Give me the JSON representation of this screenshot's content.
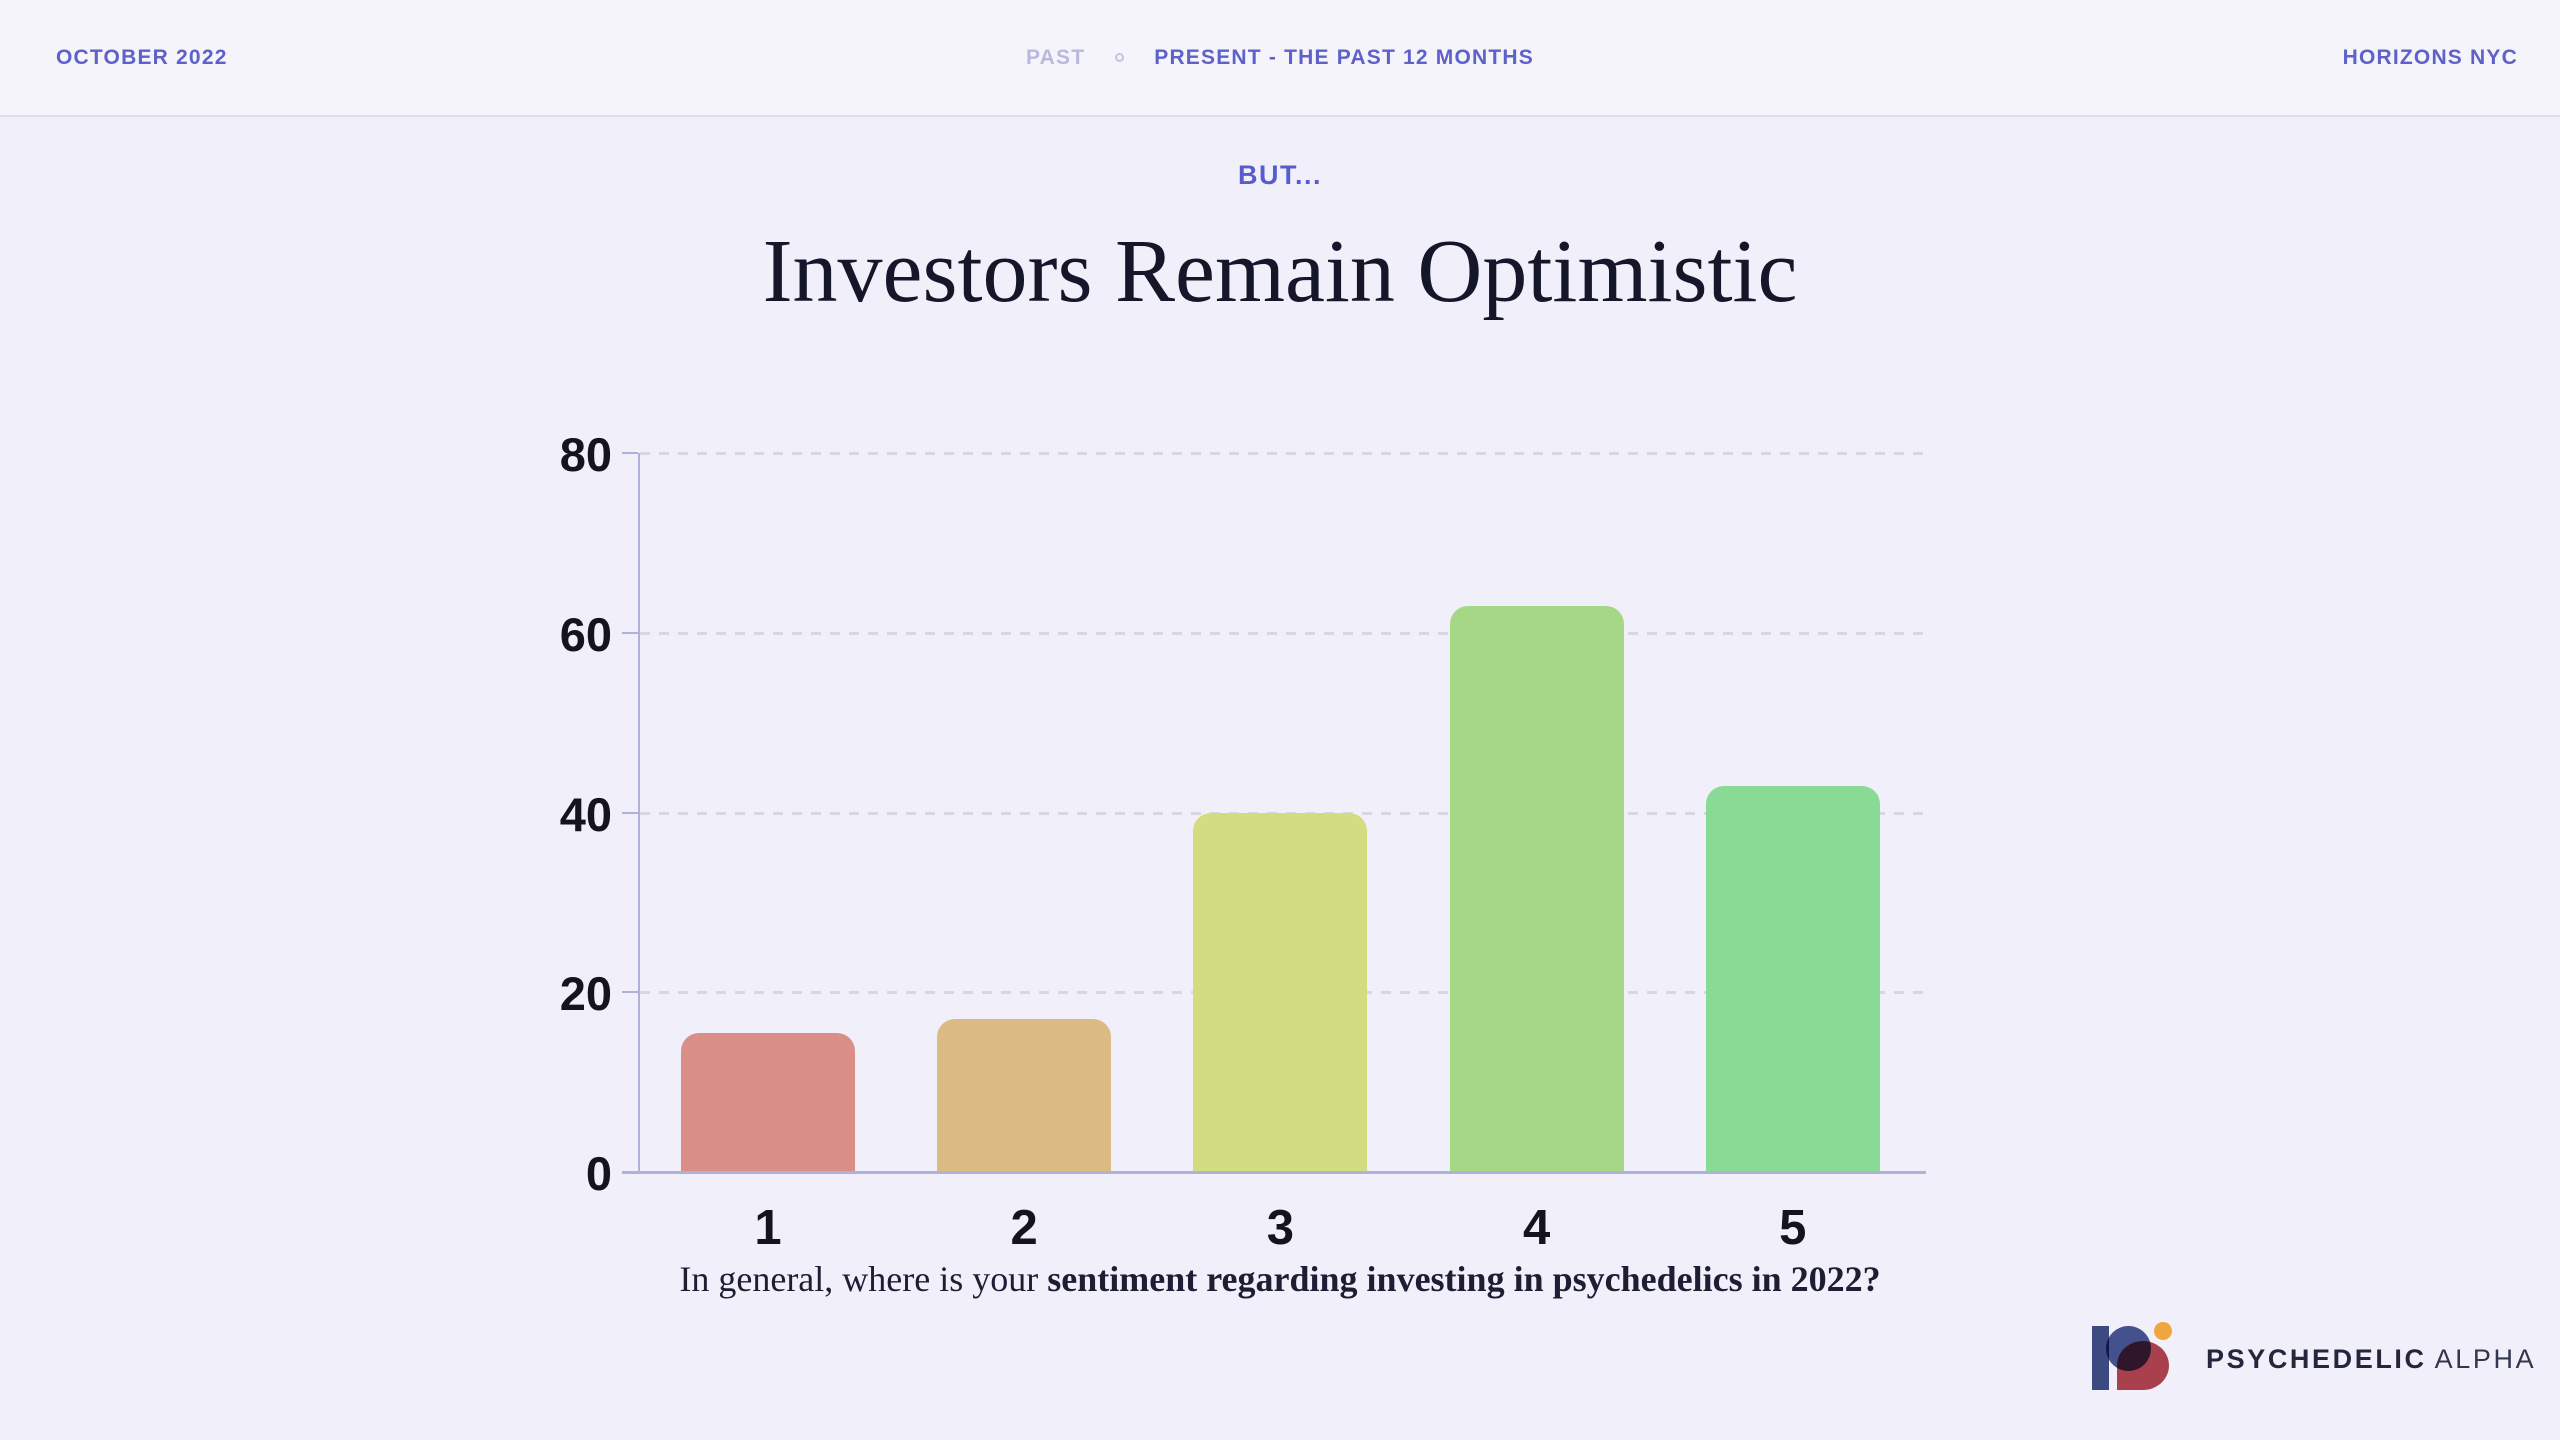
{
  "header": {
    "date": "OCTOBER 2022",
    "nav_past": "PAST",
    "nav_present": "PRESENT - THE PAST 12 MONTHS",
    "event": "HORIZONS NYC"
  },
  "kicker": "BUT...",
  "title": "Investors Remain Optimistic",
  "caption": {
    "regular": "In general, where is your ",
    "bold": "sentiment regarding investing in psychedelics in 2022?"
  },
  "footer_logo": {
    "brand_bold": "PSYCHEDELIC",
    "brand_light": "ALPHA"
  },
  "colors": {
    "accent_indigo": "#5d61c9",
    "nav_muted": "#b8badd",
    "background": "#f1f0fa",
    "header_background": "#f5f4fb",
    "axis": "#aeb2d8",
    "gridline": "#d7d7e3",
    "text_dark": "#16162a",
    "logo_navy": "#3c4a82",
    "logo_blue": "#47568f",
    "logo_red": "#b2454e",
    "logo_orange": "#f0a63f"
  },
  "chart_data": {
    "type": "bar",
    "categories": [
      "1",
      "2",
      "3",
      "4",
      "5"
    ],
    "values": [
      15.5,
      17,
      40,
      63,
      43
    ],
    "bar_colors": [
      "#d98e88",
      "#dcba83",
      "#d4dc82",
      "#a5d787",
      "#88da94"
    ],
    "title": "",
    "xlabel": "In general, where is your sentiment regarding investing in psychedelics in 2022?",
    "ylabel": "",
    "ylim": [
      0,
      80
    ],
    "yticks": [
      0,
      20,
      40,
      60,
      80
    ],
    "grid": "dashed-horizontal",
    "legend": "none"
  }
}
